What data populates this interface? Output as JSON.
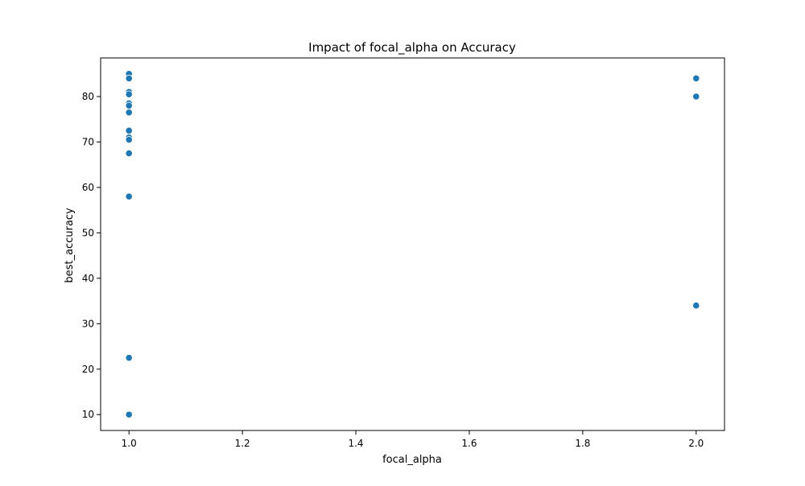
{
  "chart_data": {
    "type": "scatter",
    "title": "Impact of focal_alpha on Accuracy",
    "xlabel": "focal_alpha",
    "ylabel": "best_accuracy",
    "xlim": [
      0.95,
      2.05
    ],
    "ylim": [
      6.5,
      88.5
    ],
    "x_ticks": [
      1.0,
      1.2,
      1.4,
      1.6,
      1.8,
      2.0
    ],
    "x_tick_labels": [
      "1.0",
      "1.2",
      "1.4",
      "1.6",
      "1.8",
      "2.0"
    ],
    "y_ticks": [
      10,
      20,
      30,
      40,
      50,
      60,
      70,
      80
    ],
    "y_tick_labels": [
      "10",
      "20",
      "30",
      "40",
      "50",
      "60",
      "70",
      "80"
    ],
    "grid": false,
    "legend": "none",
    "marker_color": "#1f77b4",
    "points": [
      {
        "x": 1.0,
        "y": 85.0
      },
      {
        "x": 1.0,
        "y": 84.0
      },
      {
        "x": 1.0,
        "y": 81.0
      },
      {
        "x": 1.0,
        "y": 80.5
      },
      {
        "x": 1.0,
        "y": 78.5
      },
      {
        "x": 1.0,
        "y": 78.0
      },
      {
        "x": 1.0,
        "y": 76.5
      },
      {
        "x": 1.0,
        "y": 72.5
      },
      {
        "x": 1.0,
        "y": 71.0
      },
      {
        "x": 1.0,
        "y": 70.5
      },
      {
        "x": 1.0,
        "y": 67.5
      },
      {
        "x": 1.0,
        "y": 58.0
      },
      {
        "x": 1.0,
        "y": 22.5
      },
      {
        "x": 1.0,
        "y": 10.0
      },
      {
        "x": 2.0,
        "y": 84.0
      },
      {
        "x": 2.0,
        "y": 80.0
      },
      {
        "x": 2.0,
        "y": 34.0
      }
    ]
  }
}
